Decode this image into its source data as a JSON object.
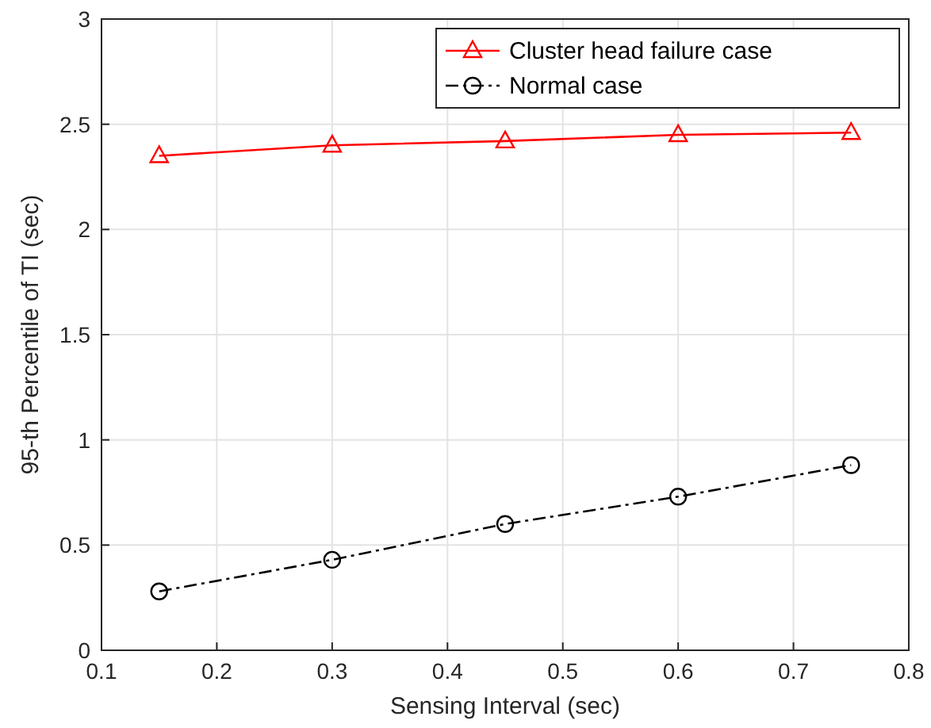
{
  "chart_data": {
    "type": "line",
    "xlabel": "Sensing Interval (sec)",
    "ylabel": "95-th Percentile of TI (sec)",
    "x": [
      0.15,
      0.3,
      0.45,
      0.6,
      0.75
    ],
    "series": [
      {
        "name": "Cluster head failure case",
        "color": "#ff0000",
        "values": [
          2.35,
          2.4,
          2.42,
          2.45,
          2.46
        ],
        "marker": "triangle",
        "line_style": "solid"
      },
      {
        "name": "Normal case",
        "color": "#000000",
        "values": [
          0.28,
          0.43,
          0.6,
          0.73,
          0.88
        ],
        "marker": "circle",
        "line_style": "dashed"
      }
    ],
    "xlim": [
      0.1,
      0.8
    ],
    "xticks": [
      0.1,
      0.2,
      0.3,
      0.4,
      0.5,
      0.6,
      0.7,
      0.8
    ],
    "ylim": [
      0,
      3
    ],
    "yticks": [
      0,
      0.5,
      1,
      1.5,
      2,
      2.5,
      3
    ],
    "grid": true,
    "legend": "top right"
  }
}
